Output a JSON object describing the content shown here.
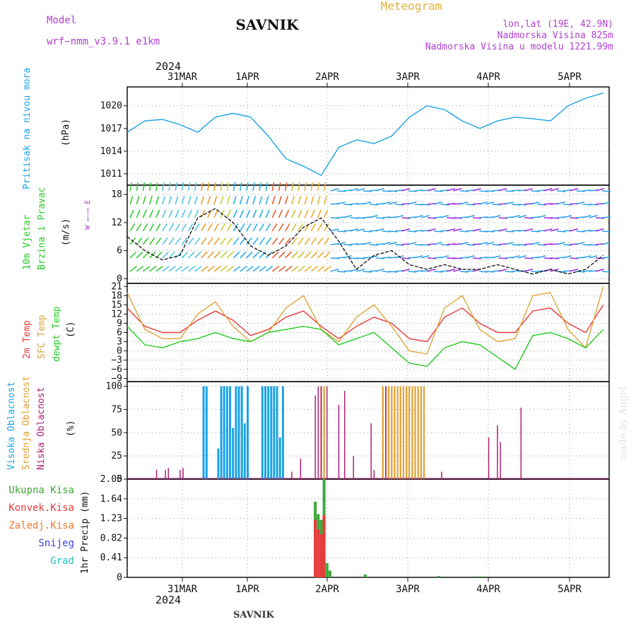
{
  "header": {
    "model_label": "Model",
    "model_name": "wrf−nmm_v3.9.1  e1km",
    "station": "SAVNIK",
    "product": "Meteogram",
    "lonlat": "lon,lat (19E, 42.9N)",
    "elevation": "Nadmorska Visina 825m",
    "model_elevation": "Nadmorska Visina u modelu 1221.99m",
    "footer_station": "SAVNIK",
    "credit": "made by Angel"
  },
  "colors": {
    "pressure": "#1aa3e6",
    "temp": "#e83a3a",
    "sfc_temp": "#dda53a",
    "dewpt": "#22cc22",
    "high_cloud": "#1aa3e6",
    "mid_cloud": "#e0a030",
    "low_cloud": "#b0207a",
    "total_precip": "#3fa83a",
    "conv_precip": "#e83a3a",
    "frozen": "#f07a2a",
    "snow": "#4040e0",
    "graupel": "#20c0c0",
    "header_purple": "#b040d0",
    "header_gold": "#e0b040"
  },
  "time_axis": {
    "top_year": "2024",
    "bottom_year": "2024",
    "day_labels": [
      "31MAR",
      "1APR",
      "2APR",
      "3APR",
      "4APR",
      "5APR"
    ]
  },
  "panels": {
    "pressure": {
      "label_1": "Pritisak na nivou mora",
      "unit": "(hPa)",
      "ticks": [
        "1020",
        "1017",
        "1014",
        "1011"
      ]
    },
    "wind": {
      "label_1": "10m Vjetar",
      "label_2": "Brzina i Pravac",
      "unit": "(m/s)",
      "ticks": [
        "18",
        "12",
        "6",
        "0"
      ],
      "compass": "W ←—→ E"
    },
    "temperature": {
      "label_1": "2m Temp",
      "label_2": "SFC Temp",
      "label_3": "dewpt Temp",
      "unit": "(C)",
      "ticks": [
        "21",
        "18",
        "15",
        "12",
        "9",
        "6",
        "3",
        "0",
        "−3",
        "−6",
        "−9"
      ]
    },
    "cloud": {
      "label_1": "Visoka Oblacnost",
      "label_2": "Srednja Oblacnost",
      "label_3": "Niska Oblacnost",
      "unit": "(%)",
      "ticks": [
        "100",
        "75",
        "50",
        "25",
        "0"
      ]
    },
    "precip": {
      "labels": [
        "Ukupna Kisa",
        "Konvek.Kisa",
        "Zaledj.Kisa",
        "Snijeg",
        "Grad"
      ],
      "unit": "1hr Precip (mm)",
      "ticks": [
        "2.05",
        "1.64",
        "1.23",
        "0.82",
        "0.41",
        "0"
      ]
    }
  },
  "chart_data": [
    {
      "type": "line",
      "title": "Pritisak na nivou mora",
      "ylabel": "(hPa)",
      "x_hours": [
        0,
        6,
        12,
        18,
        24,
        30,
        36,
        42,
        48,
        54,
        60,
        66,
        72,
        78,
        84,
        90,
        96,
        102,
        108,
        114,
        120,
        126,
        132,
        138,
        144,
        150,
        156,
        162
      ],
      "series": [
        {
          "name": "Pritisak na nivou mora",
          "values": [
            1016.5,
            1018.0,
            1018.2,
            1017.5,
            1016.5,
            1018.5,
            1019.0,
            1018.5,
            1016.0,
            1013.0,
            1012.0,
            1010.8,
            1014.5,
            1015.5,
            1015.0,
            1016.0,
            1018.5,
            1020.0,
            1019.5,
            1018.0,
            1017.0,
            1018.0,
            1018.5,
            1018.3,
            1018.0,
            1020.0,
            1021.0,
            1021.7
          ]
        }
      ],
      "ylim": [
        1009.5,
        1022.5
      ]
    },
    {
      "type": "line",
      "title": "10m Vjetar Brzina i Pravac",
      "ylabel": "(m/s)",
      "x_hours": [
        0,
        6,
        12,
        18,
        24,
        30,
        36,
        42,
        48,
        54,
        60,
        66,
        72,
        78,
        84,
        90,
        96,
        102,
        108,
        114,
        120,
        126,
        132,
        138,
        144,
        150,
        156,
        162
      ],
      "series": [
        {
          "name": "10m Vjetar",
          "values": [
            9,
            6,
            4,
            5,
            13,
            15,
            12,
            7,
            5,
            7,
            11,
            13,
            8,
            2,
            5,
            6,
            3,
            2,
            3,
            2,
            2,
            3,
            2,
            1,
            2,
            1,
            2,
            5
          ]
        }
      ],
      "ylim": [
        -1,
        20
      ]
    },
    {
      "type": "line",
      "title": "2m Temp / SFC Temp / dewpt Temp",
      "ylabel": "(C)",
      "x_hours": [
        0,
        6,
        12,
        18,
        24,
        30,
        36,
        42,
        48,
        54,
        60,
        66,
        72,
        78,
        84,
        90,
        96,
        102,
        108,
        114,
        120,
        126,
        132,
        138,
        144,
        150,
        156,
        162
      ],
      "series": [
        {
          "name": "2m Temp",
          "values": [
            14,
            8,
            6,
            6,
            10,
            13,
            10,
            5,
            7,
            11,
            13,
            8,
            4,
            8,
            11,
            9,
            4,
            3,
            11,
            14,
            9,
            6,
            6,
            13,
            14,
            9,
            6,
            15
          ]
        },
        {
          "name": "SFC Temp",
          "values": [
            19,
            7,
            4,
            4,
            12,
            16,
            8,
            3,
            6,
            14,
            18,
            7,
            3,
            11,
            15,
            8,
            0,
            -1,
            14,
            18,
            7,
            3,
            4,
            18,
            19,
            7,
            1,
            21
          ]
        },
        {
          "name": "dewpt Temp",
          "values": [
            8,
            2,
            1,
            3,
            4,
            6,
            4,
            3,
            6,
            7,
            8,
            7,
            2,
            4,
            6,
            1,
            -4,
            -5,
            1,
            3,
            2,
            -2,
            -6,
            5,
            6,
            4,
            1,
            7
          ]
        }
      ],
      "ylim": [
        -9,
        21
      ]
    },
    {
      "type": "bar",
      "title": "Oblacnost",
      "ylabel": "(%)",
      "series": [
        {
          "name": "Visoka Oblacnost",
          "x_hours": [
            26,
            27,
            31,
            32,
            33,
            34,
            35,
            36,
            37,
            38,
            39,
            40,
            41,
            46,
            47,
            48,
            49,
            50,
            51,
            52,
            53
          ],
          "values": [
            100,
            100,
            33,
            100,
            100,
            100,
            100,
            55,
            100,
            100,
            100,
            60,
            100,
            100,
            100,
            100,
            100,
            100,
            100,
            45,
            100
          ]
        },
        {
          "name": "Srednja Oblacnost",
          "x_hours": [
            66,
            67,
            87,
            88,
            89,
            90,
            91,
            92,
            93,
            94,
            95,
            96,
            97,
            98,
            99,
            100,
            101
          ],
          "values": [
            100,
            100,
            100,
            100,
            100,
            100,
            100,
            100,
            100,
            100,
            100,
            100,
            100,
            100,
            100,
            100,
            100
          ]
        },
        {
          "name": "Niska Oblacnost",
          "x_hours": [
            10,
            13,
            14,
            18,
            19,
            56,
            59,
            64,
            65,
            66,
            68,
            72,
            74,
            77,
            83,
            84,
            88,
            107,
            123,
            126,
            127,
            134
          ],
          "values": [
            10,
            10,
            12,
            10,
            12,
            8,
            22,
            90,
            100,
            100,
            100,
            80,
            95,
            25,
            60,
            10,
            100,
            8,
            45,
            58,
            40,
            77
          ]
        }
      ],
      "ylim": [
        0,
        100
      ]
    },
    {
      "type": "bar",
      "title": "1hr Precip",
      "ylabel": "1hr Precip (mm)",
      "series": [
        {
          "name": "Ukupna Kisa",
          "x_hours": [
            64,
            65,
            66,
            67,
            68,
            69,
            81,
            106,
            120
          ],
          "values": [
            1.58,
            1.32,
            1.2,
            2.05,
            0.3,
            0.14,
            0.06,
            0.03,
            0.02
          ]
        },
        {
          "name": "Konvek.Kisa",
          "x_hours": [
            64,
            65,
            66,
            67
          ],
          "values": [
            1.2,
            1.0,
            0.9,
            1.3
          ]
        }
      ],
      "ylim": [
        0,
        2.05
      ]
    }
  ]
}
